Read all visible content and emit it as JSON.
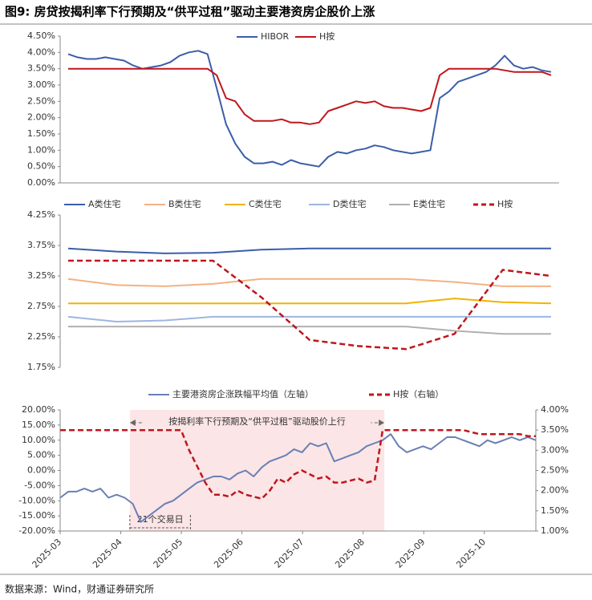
{
  "title": "图9: 房贷按揭利率下行预期及“供平过租”驱动主要港资房企股价上涨",
  "source": "数据来源：Wind，财通证券研究所",
  "chart_data": [
    {
      "type": "line",
      "series": [
        {
          "name": "HIBOR",
          "color": "#3b5ea8",
          "values": [
            3.95,
            3.85,
            3.8,
            3.8,
            3.85,
            3.8,
            3.75,
            3.6,
            3.5,
            3.55,
            3.6,
            3.7,
            3.9,
            4.0,
            4.05,
            3.95,
            2.9,
            1.8,
            1.2,
            0.8,
            0.6,
            0.6,
            0.65,
            0.55,
            0.7,
            0.6,
            0.55,
            0.5,
            0.8,
            0.95,
            0.9,
            1.0,
            1.05,
            1.15,
            1.1,
            1.0,
            0.95,
            0.9,
            0.95,
            1.0,
            2.6,
            2.8,
            3.1,
            3.2,
            3.3,
            3.4,
            3.6,
            3.9,
            3.6,
            3.5,
            3.55,
            3.45,
            3.4
          ]
        },
        {
          "name": "H按",
          "color": "#c0161d",
          "values": [
            3.5,
            3.5,
            3.5,
            3.5,
            3.5,
            3.5,
            3.5,
            3.5,
            3.5,
            3.5,
            3.5,
            3.5,
            3.5,
            3.5,
            3.5,
            3.5,
            3.3,
            2.6,
            2.5,
            2.1,
            1.9,
            1.9,
            1.9,
            1.95,
            1.85,
            1.85,
            1.8,
            1.85,
            2.2,
            2.3,
            2.4,
            2.5,
            2.45,
            2.5,
            2.35,
            2.3,
            2.3,
            2.25,
            2.2,
            2.3,
            3.3,
            3.5,
            3.5,
            3.5,
            3.5,
            3.5,
            3.5,
            3.45,
            3.4,
            3.4,
            3.4,
            3.4,
            3.3
          ]
        }
      ],
      "ylim": [
        0,
        4.5
      ],
      "yticks": [
        {
          "value": 0,
          "label": "0.00%"
        },
        {
          "value": 0.5,
          "label": "0.50%"
        },
        {
          "value": 1,
          "label": "1.00%"
        },
        {
          "value": 1.5,
          "label": "1.50%"
        },
        {
          "value": 2,
          "label": "2.00%"
        },
        {
          "value": 2.5,
          "label": "2.50%"
        },
        {
          "value": 3,
          "label": "3.00%"
        },
        {
          "value": 3.5,
          "label": "3.50%"
        },
        {
          "value": 4,
          "label": "4.00%"
        },
        {
          "value": 4.5,
          "label": "4.50%"
        }
      ]
    },
    {
      "type": "line",
      "series": [
        {
          "name": "A类住宅",
          "color": "#3b5ea8",
          "values": [
            3.7,
            3.65,
            3.62,
            3.63,
            3.68,
            3.7,
            3.7,
            3.7,
            3.7,
            3.7,
            3.7
          ]
        },
        {
          "name": "B类住宅",
          "color": "#f4b183",
          "values": [
            3.2,
            3.1,
            3.08,
            3.12,
            3.2,
            3.2,
            3.2,
            3.2,
            3.15,
            3.08,
            3.08
          ]
        },
        {
          "name": "C类住宅",
          "color": "#f0b400",
          "values": [
            2.8,
            2.8,
            2.8,
            2.8,
            2.8,
            2.8,
            2.8,
            2.8,
            2.88,
            2.82,
            2.8
          ]
        },
        {
          "name": "D类住宅",
          "color": "#9db6e0",
          "values": [
            2.58,
            2.5,
            2.52,
            2.58,
            2.58,
            2.58,
            2.58,
            2.58,
            2.58,
            2.58,
            2.58
          ]
        },
        {
          "name": "E类住宅",
          "color": "#b0b0b0",
          "values": [
            2.42,
            2.42,
            2.42,
            2.42,
            2.42,
            2.42,
            2.42,
            2.42,
            2.35,
            2.3,
            2.3
          ]
        },
        {
          "name": "H按",
          "color": "#c0161d",
          "dashed": true,
          "values": [
            3.5,
            3.5,
            3.5,
            3.5,
            2.9,
            2.2,
            2.1,
            2.05,
            2.3,
            3.35,
            3.25
          ]
        }
      ],
      "ylim": [
        1.75,
        4.25
      ],
      "yticks": [
        {
          "value": 1.75,
          "label": "1.75%"
        },
        {
          "value": 2.25,
          "label": "2.25%"
        },
        {
          "value": 2.75,
          "label": "2.75%"
        },
        {
          "value": 3.25,
          "label": "3.25%"
        },
        {
          "value": 3.75,
          "label": "3.75%"
        },
        {
          "value": 4.25,
          "label": "4.25%"
        }
      ]
    },
    {
      "type": "line",
      "series": [
        {
          "name": "主要港资房企涨跌幅平均值（左轴）",
          "color": "#6a7fb5",
          "values": [
            -9,
            -7,
            -7,
            -6,
            -7,
            -6,
            -9,
            -8,
            -9,
            -11,
            -17,
            -15,
            -13,
            -11,
            -10,
            -8,
            -6,
            -4,
            -3,
            -2,
            -2,
            -3,
            -1,
            0,
            -2,
            1,
            3,
            4,
            5,
            7,
            6,
            9,
            8,
            9,
            3,
            4,
            5,
            6,
            8,
            9,
            10,
            12,
            8,
            6,
            7,
            8,
            7,
            9,
            11,
            11,
            10,
            9,
            8,
            10,
            9,
            10,
            11,
            10,
            11,
            10
          ]
        },
        {
          "name": "H按（右轴）",
          "color": "#c0161d",
          "dashed": true,
          "axis": "y2",
          "values": [
            3.5,
            3.5,
            3.5,
            3.5,
            3.5,
            3.5,
            3.5,
            3.5,
            3.5,
            3.5,
            3.5,
            3.5,
            3.5,
            3.5,
            3.5,
            3.5,
            3.0,
            2.6,
            2.2,
            1.9,
            1.9,
            1.85,
            2.0,
            1.9,
            1.85,
            1.8,
            2.0,
            2.3,
            2.2,
            2.4,
            2.5,
            2.4,
            2.3,
            2.35,
            2.2,
            2.2,
            2.25,
            2.3,
            2.2,
            2.25,
            3.5,
            3.5,
            3.5,
            3.5,
            3.5,
            3.5,
            3.5,
            3.5,
            3.5,
            3.5,
            3.5,
            3.45,
            3.4,
            3.4,
            3.4,
            3.4,
            3.4,
            3.4,
            3.35,
            3.35
          ]
        }
      ],
      "xlim": [
        0,
        7.85
      ],
      "xticks": [
        {
          "value": 0,
          "label": "2025-03"
        },
        {
          "value": 1,
          "label": "2025-04"
        },
        {
          "value": 2,
          "label": "2025-05"
        },
        {
          "value": 3,
          "label": "2025-06"
        },
        {
          "value": 4,
          "label": "2025-07"
        },
        {
          "value": 5,
          "label": "2025-08"
        },
        {
          "value": 6,
          "label": "2025-09"
        },
        {
          "value": 7,
          "label": "2025-10"
        }
      ],
      "ylim": [
        -20,
        20
      ],
      "yticks": [
        {
          "value": -20,
          "label": "-20.00%"
        },
        {
          "value": -15,
          "label": "-15.00%"
        },
        {
          "value": -10,
          "label": "-10.00%"
        },
        {
          "value": -5,
          "label": "-5.00%"
        },
        {
          "value": 0,
          "label": "0.00%"
        },
        {
          "value": 5,
          "label": "5.00%"
        },
        {
          "value": 10,
          "label": "10.00%"
        },
        {
          "value": 15,
          "label": "15.00%"
        },
        {
          "value": 20,
          "label": "20.00%"
        }
      ],
      "y2lim": [
        1,
        4
      ],
      "y2ticks": [
        {
          "value": 1,
          "label": "1.00%"
        },
        {
          "value": 1.5,
          "label": "1.50%"
        },
        {
          "value": 2,
          "label": "2.00%"
        },
        {
          "value": 2.5,
          "label": "2.50%"
        },
        {
          "value": 3,
          "label": "3.00%"
        },
        {
          "value": 3.5,
          "label": "3.50%"
        },
        {
          "value": 4,
          "label": "4.00%"
        }
      ],
      "shade": [
        1.15,
        5.35
      ],
      "annotations": [
        {
          "text": "按揭利率下行预期及“供平过租”驱动股价上行",
          "span": [
            1.15,
            5.35
          ]
        },
        {
          "text": "21个交易日",
          "span": [
            1.15,
            2.15
          ]
        }
      ]
    }
  ]
}
